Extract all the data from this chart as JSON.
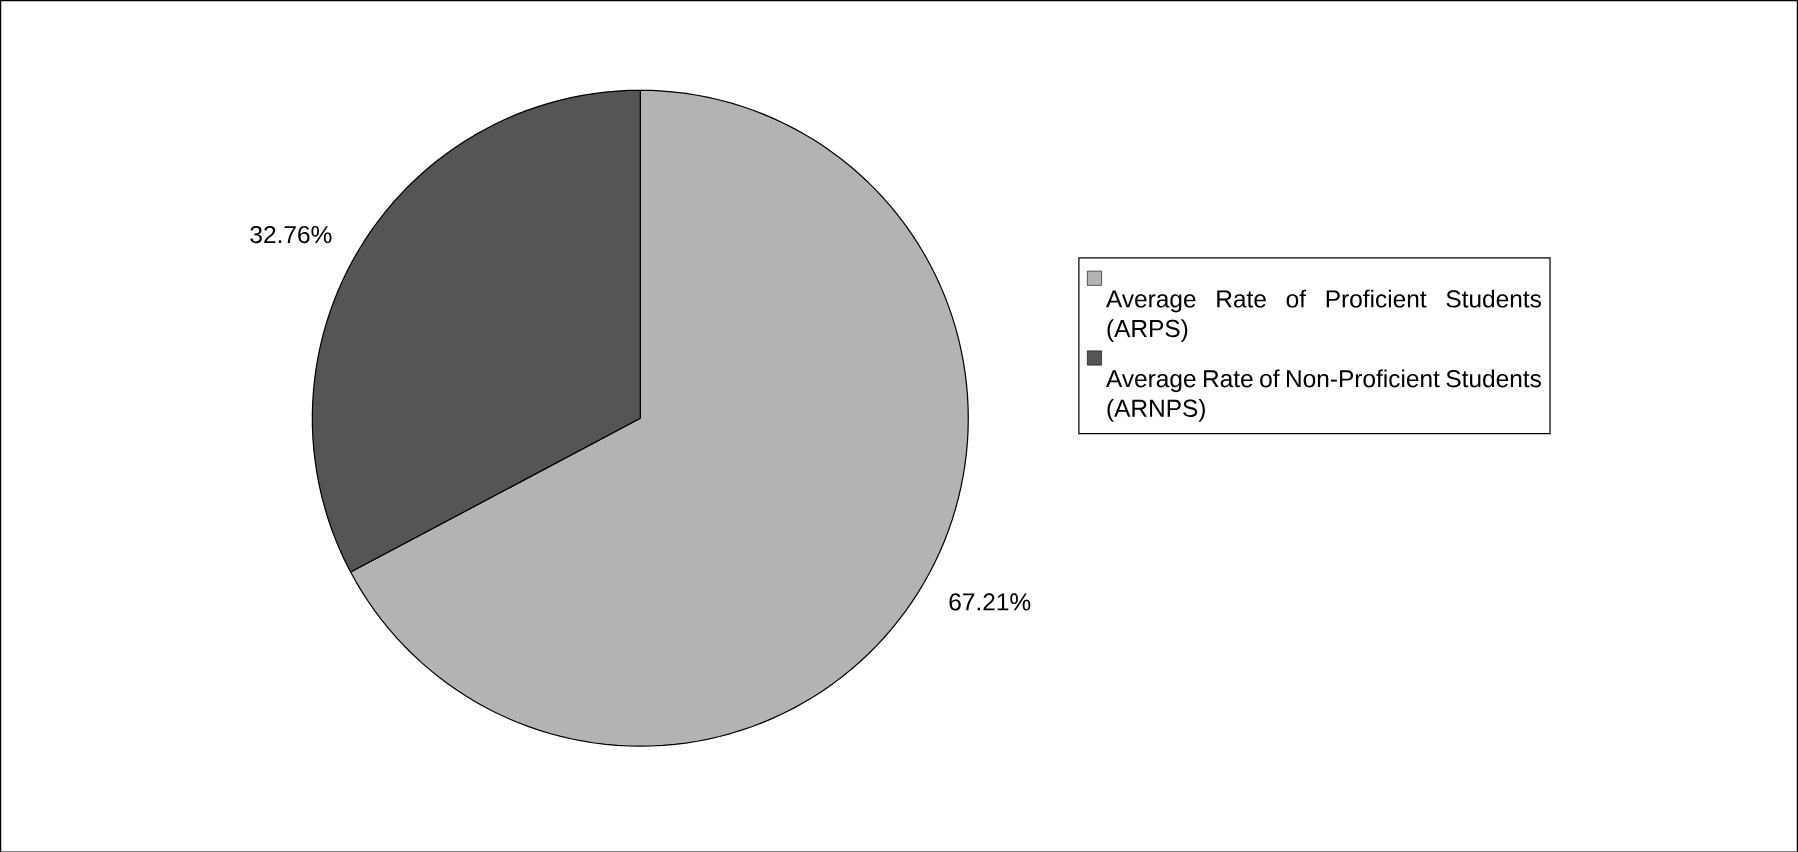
{
  "chart_data": {
    "type": "pie",
    "categories": [
      "Average Rate of Proficient Students (ARPS)",
      "Average Rate of Non-Proficient Students (ARNPS)"
    ],
    "values": [
      67.21,
      32.76
    ],
    "colors": [
      "#b3b3b3",
      "#555555"
    ],
    "value_labels": [
      "67.21%",
      "32.76%"
    ],
    "legend": "right"
  }
}
